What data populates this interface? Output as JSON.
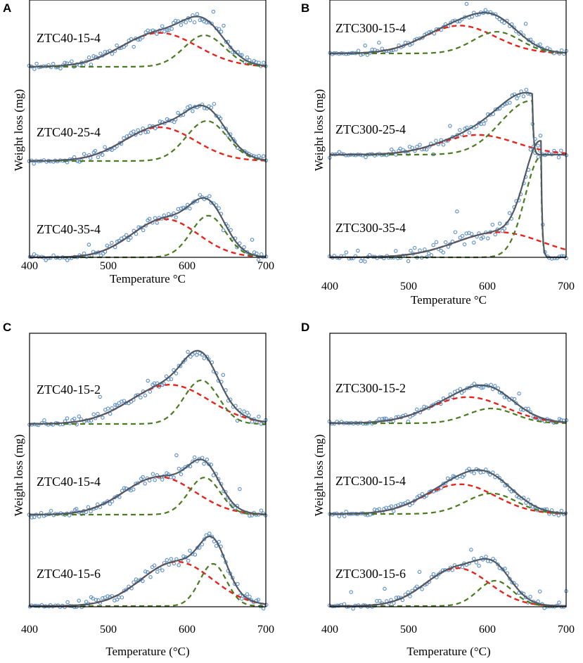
{
  "figure": {
    "panels": [
      {
        "letter": "A",
        "xlabel": "Temperature °C",
        "ylabel": "Weight loss (mg)",
        "xticks": [
          "400",
          "500",
          "600",
          "700"
        ],
        "samples": [
          {
            "label": "ZTC40-15-4"
          },
          {
            "label": "ZTC40-25-4"
          },
          {
            "label": "ZTC40-35-4"
          }
        ]
      },
      {
        "letter": "B",
        "xlabel": "Temperature °C",
        "ylabel": "Weight loss (mg)",
        "xticks": [
          "400",
          "500",
          "600",
          "700"
        ],
        "samples": [
          {
            "label": "ZTC300-15-4"
          },
          {
            "label": "ZTC300-25-4"
          },
          {
            "label": "ZTC300-35-4"
          }
        ]
      },
      {
        "letter": "C",
        "xlabel": "Temperature (°C)",
        "ylabel": "Weight loss (mg)",
        "xticks": [
          "400",
          "500",
          "600",
          "700"
        ],
        "samples": [
          {
            "label": "ZTC40-15-2"
          },
          {
            "label": "ZTC40-15-4"
          },
          {
            "label": "ZTC40-15-6"
          }
        ]
      },
      {
        "letter": "D",
        "xlabel": "Temperature (°C)",
        "ylabel": "Weight loss (mg)",
        "xticks": [
          "400",
          "500",
          "600",
          "700"
        ],
        "samples": [
          {
            "label": "ZTC300-15-2"
          },
          {
            "label": "ZTC300-15-4"
          },
          {
            "label": "ZTC300-15-6"
          }
        ]
      }
    ]
  },
  "colors": {
    "fit": "#505a64",
    "peak1": "#e8231c",
    "peak2": "#4b7b20",
    "points": "#5b8fc7",
    "frame": "#000000"
  },
  "chart_data": [
    {
      "panel": "A",
      "type": "line",
      "xlabel": "Temperature °C",
      "ylabel": "Weight loss (mg)",
      "xlim": [
        400,
        700
      ],
      "series_kinds": [
        "experimental points",
        "total fit",
        "peak 1 (red dashed)",
        "peak 2 (green dashed)"
      ],
      "samples": [
        {
          "label": "ZTC40-15-4",
          "ymax": 1.0,
          "peak1": {
            "center": 565,
            "width": 48,
            "height": 0.69
          },
          "peak2": {
            "center": 622,
            "width": 26,
            "height": 0.64
          }
        },
        {
          "label": "ZTC40-25-4",
          "ymax": 1.0,
          "peak1": {
            "center": 565,
            "width": 45,
            "height": 0.64
          },
          "peak2": {
            "center": 625,
            "width": 26,
            "height": 0.76
          }
        },
        {
          "label": "ZTC40-35-4",
          "ymax": 1.0,
          "peak1": {
            "center": 572,
            "width": 42,
            "height": 0.68
          },
          "peak2": {
            "center": 627,
            "width": 22,
            "height": 0.74
          }
        }
      ]
    },
    {
      "panel": "B",
      "type": "line",
      "xlabel": "Temperature °C",
      "ylabel": "Weight loss (mg)",
      "xlim": [
        400,
        700
      ],
      "series_kinds": [
        "experimental points",
        "total fit",
        "peak 1 (red dashed)",
        "peak 2 (green dashed)"
      ],
      "samples": [
        {
          "label": "ZTC300-15-4",
          "ymax": 1.0,
          "peak1": {
            "center": 565,
            "width": 45,
            "height": 0.72
          },
          "peak2": {
            "center": 612,
            "width": 30,
            "height": 0.56
          }
        },
        {
          "label": "ZTC300-25-4",
          "ymax": 1.0,
          "peak1": {
            "center": 588,
            "width": 48,
            "height": 0.33
          },
          "peak2": {
            "center": 655,
            "width": 38,
            "height": 0.9
          },
          "drop_at": 657
        },
        {
          "label": "ZTC300-35-4",
          "ymax": 1.0,
          "peak1": {
            "center": 615,
            "width": 55,
            "height": 0.25
          },
          "peak2": {
            "center": 668,
            "width": 20,
            "height": 1.0
          },
          "drop_at": 668
        }
      ]
    },
    {
      "panel": "C",
      "type": "line",
      "xlabel": "Temperature (°C)",
      "ylabel": "Weight loss (mg)",
      "xlim": [
        400,
        700
      ],
      "series_kinds": [
        "experimental points",
        "total fit",
        "peak 1 (red dashed)",
        "peak 2 (green dashed)"
      ],
      "samples": [
        {
          "label": "ZTC40-15-2",
          "ymax": 1.0,
          "peak1": {
            "center": 578,
            "width": 50,
            "height": 0.62
          },
          "peak2": {
            "center": 618,
            "width": 22,
            "height": 0.69
          }
        },
        {
          "label": "ZTC40-15-4",
          "ymax": 1.0,
          "peak1": {
            "center": 565,
            "width": 45,
            "height": 0.67
          },
          "peak2": {
            "center": 622,
            "width": 20,
            "height": 0.66
          }
        },
        {
          "label": "ZTC40-15-6",
          "ymax": 1.0,
          "peak1": {
            "center": 587,
            "width": 45,
            "height": 0.63
          },
          "peak2": {
            "center": 633,
            "width": 17,
            "height": 0.6
          }
        }
      ]
    },
    {
      "panel": "D",
      "type": "line",
      "xlabel": "Temperature (°C)",
      "ylabel": "Weight loss (mg)",
      "xlim": [
        400,
        700
      ],
      "series_kinds": [
        "experimental points",
        "total fit",
        "peak 1 (red dashed)",
        "peak 2 (green dashed)"
      ],
      "samples": [
        {
          "label": "ZTC300-15-2",
          "ymax": 1.0,
          "peak1": {
            "center": 575,
            "width": 48,
            "height": 0.62
          },
          "peak2": {
            "center": 605,
            "width": 30,
            "height": 0.35
          }
        },
        {
          "label": "ZTC300-15-4",
          "ymax": 1.0,
          "peak1": {
            "center": 565,
            "width": 45,
            "height": 0.65
          },
          "peak2": {
            "center": 605,
            "width": 32,
            "height": 0.45
          }
        },
        {
          "label": "ZTC300-15-6",
          "ymax": 1.0,
          "peak1": {
            "center": 562,
            "width": 40,
            "height": 0.72
          },
          "peak2": {
            "center": 610,
            "width": 22,
            "height": 0.48
          }
        }
      ]
    }
  ]
}
